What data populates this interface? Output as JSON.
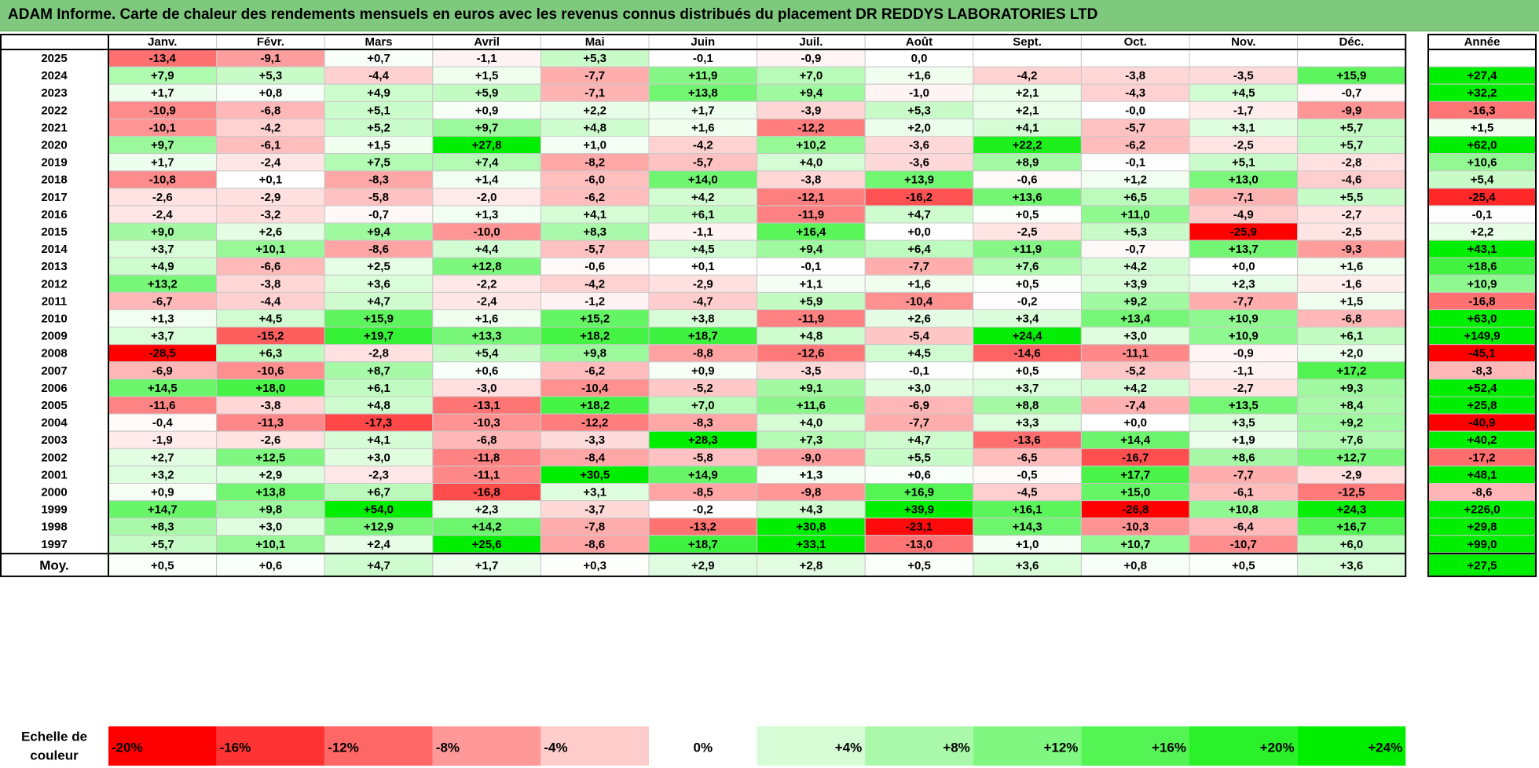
{
  "title": "ADAM Informe. Carte de chaleur des rendements mensuels en euros avec les revenus connus distribués du placement DR REDDYS LABORATORIES LTD",
  "chart_data": {
    "type": "heatmap",
    "months": [
      "Janv.",
      "Févr.",
      "Mars",
      "Avril",
      "Mai",
      "Juin",
      "Juil.",
      "Août",
      "Sept.",
      "Oct.",
      "Nov.",
      "Déc."
    ],
    "year_column_label": "Année",
    "average_row_label": "Moy.",
    "rows": [
      {
        "year": "2025",
        "values": [
          "-13,4",
          "-9,1",
          "+0,7",
          "-1,1",
          "+5,3",
          "-0,1",
          "-0,9",
          "0,0",
          "",
          "",
          "",
          ""
        ],
        "annual": ""
      },
      {
        "year": "2024",
        "values": [
          "+7,9",
          "+5,3",
          "-4,4",
          "+1,5",
          "-7,7",
          "+11,9",
          "+7,0",
          "+1,6",
          "-4,2",
          "-3,8",
          "-3,5",
          "+15,9"
        ],
        "annual": "+27,4"
      },
      {
        "year": "2023",
        "values": [
          "+1,7",
          "+0,8",
          "+4,9",
          "+5,9",
          "-7,1",
          "+13,8",
          "+9,4",
          "-1,0",
          "+2,1",
          "-4,3",
          "+4,5",
          "-0,7"
        ],
        "annual": "+32,2"
      },
      {
        "year": "2022",
        "values": [
          "-10,9",
          "-6,8",
          "+5,1",
          "+0,9",
          "+2,2",
          "+1,7",
          "-3,9",
          "+5,3",
          "+2,1",
          "-0,0",
          "-1,7",
          "-9,9"
        ],
        "annual": "-16,3"
      },
      {
        "year": "2021",
        "values": [
          "-10,1",
          "-4,2",
          "+5,2",
          "+9,7",
          "+4,8",
          "+1,6",
          "-12,2",
          "+2,0",
          "+4,1",
          "-5,7",
          "+3,1",
          "+5,7"
        ],
        "annual": "+1,5"
      },
      {
        "year": "2020",
        "values": [
          "+9,7",
          "-6,1",
          "+1,5",
          "+27,8",
          "+1,0",
          "-4,2",
          "+10,2",
          "-3,6",
          "+22,2",
          "-6,2",
          "-2,5",
          "+5,7"
        ],
        "annual": "+62,0"
      },
      {
        "year": "2019",
        "values": [
          "+1,7",
          "-2,4",
          "+7,5",
          "+7,4",
          "-8,2",
          "-5,7",
          "+4,0",
          "-3,6",
          "+8,9",
          "-0,1",
          "+5,1",
          "-2,8"
        ],
        "annual": "+10,6"
      },
      {
        "year": "2018",
        "values": [
          "-10,8",
          "+0,1",
          "-8,3",
          "+1,4",
          "-6,0",
          "+14,0",
          "-3,8",
          "+13,9",
          "-0,6",
          "+1,2",
          "+13,0",
          "-4,6"
        ],
        "annual": "+5,4"
      },
      {
        "year": "2017",
        "values": [
          "-2,6",
          "-2,9",
          "-5,8",
          "-2,0",
          "-6,2",
          "+4,2",
          "-12,1",
          "-16,2",
          "+13,6",
          "+6,5",
          "-7,1",
          "+5,5"
        ],
        "annual": "-25,4"
      },
      {
        "year": "2016",
        "values": [
          "-2,4",
          "-3,2",
          "-0,7",
          "+1,3",
          "+4,1",
          "+6,1",
          "-11,9",
          "+4,7",
          "+0,5",
          "+11,0",
          "-4,9",
          "-2,7"
        ],
        "annual": "-0,1"
      },
      {
        "year": "2015",
        "values": [
          "+9,0",
          "+2,6",
          "+9,4",
          "-10,0",
          "+8,3",
          "-1,1",
          "+16,4",
          "+0,0",
          "-2,5",
          "+5,3",
          "-25,9",
          "-2,5"
        ],
        "annual": "+2,2"
      },
      {
        "year": "2014",
        "values": [
          "+3,7",
          "+10,1",
          "-8,6",
          "+4,4",
          "-5,7",
          "+4,5",
          "+9,4",
          "+6,4",
          "+11,9",
          "-0,7",
          "+13,7",
          "-9,3"
        ],
        "annual": "+43,1"
      },
      {
        "year": "2013",
        "values": [
          "+4,9",
          "-6,6",
          "+2,5",
          "+12,8",
          "-0,6",
          "+0,1",
          "-0,1",
          "-7,7",
          "+7,6",
          "+4,2",
          "+0,0",
          "+1,6"
        ],
        "annual": "+18,6"
      },
      {
        "year": "2012",
        "values": [
          "+13,2",
          "-3,8",
          "+3,6",
          "-2,2",
          "-4,2",
          "-2,9",
          "+1,1",
          "+1,6",
          "+0,5",
          "+3,9",
          "+2,3",
          "-1,6"
        ],
        "annual": "+10,9"
      },
      {
        "year": "2011",
        "values": [
          "-6,7",
          "-4,4",
          "+4,7",
          "-2,4",
          "-1,2",
          "-4,7",
          "+5,9",
          "-10,4",
          "-0,2",
          "+9,2",
          "-7,7",
          "+1,5"
        ],
        "annual": "-16,8"
      },
      {
        "year": "2010",
        "values": [
          "+1,3",
          "+4,5",
          "+15,9",
          "+1,6",
          "+15,2",
          "+3,8",
          "-11,9",
          "+2,6",
          "+3,4",
          "+13,4",
          "+10,9",
          "-6,8"
        ],
        "annual": "+63,0"
      },
      {
        "year": "2009",
        "values": [
          "+3,7",
          "-15,2",
          "+19,7",
          "+13,3",
          "+18,2",
          "+18,7",
          "+4,8",
          "-5,4",
          "+24,4",
          "+3,0",
          "+10,9",
          "+6,1"
        ],
        "annual": "+149,9"
      },
      {
        "year": "2008",
        "values": [
          "-28,5",
          "+6,3",
          "-2,8",
          "+5,4",
          "+9,8",
          "-8,8",
          "-12,6",
          "+4,5",
          "-14,6",
          "-11,1",
          "-0,9",
          "+2,0"
        ],
        "annual": "-45,1"
      },
      {
        "year": "2007",
        "values": [
          "-6,9",
          "-10,6",
          "+8,7",
          "+0,6",
          "-6,2",
          "+0,9",
          "-3,5",
          "-0,1",
          "+0,5",
          "-5,2",
          "-1,1",
          "+17,2"
        ],
        "annual": "-8,3"
      },
      {
        "year": "2006",
        "values": [
          "+14,5",
          "+18,0",
          "+6,1",
          "-3,0",
          "-10,4",
          "-5,2",
          "+9,1",
          "+3,0",
          "+3,7",
          "+4,2",
          "-2,7",
          "+9,3"
        ],
        "annual": "+52,4"
      },
      {
        "year": "2005",
        "values": [
          "-11,6",
          "-3,8",
          "+4,8",
          "-13,1",
          "+18,2",
          "+7,0",
          "+11,6",
          "-6,9",
          "+8,8",
          "-7,4",
          "+13,5",
          "+8,4"
        ],
        "annual": "+25,8"
      },
      {
        "year": "2004",
        "values": [
          "-0,4",
          "-11,3",
          "-17,3",
          "-10,3",
          "-12,2",
          "-8,3",
          "+4,0",
          "-7,7",
          "+3,3",
          "+0,0",
          "+3,5",
          "+9,2"
        ],
        "annual": "-40,9"
      },
      {
        "year": "2003",
        "values": [
          "-1,9",
          "-2,6",
          "+4,1",
          "-6,8",
          "-3,3",
          "+28,3",
          "+7,3",
          "+4,7",
          "-13,6",
          "+14,4",
          "+1,9",
          "+7,6"
        ],
        "annual": "+40,2"
      },
      {
        "year": "2002",
        "values": [
          "+2,7",
          "+12,5",
          "+3,0",
          "-11,8",
          "-8,4",
          "-5,8",
          "-9,0",
          "+5,5",
          "-6,5",
          "-16,7",
          "+8,6",
          "+12,7"
        ],
        "annual": "-17,2"
      },
      {
        "year": "2001",
        "values": [
          "+3,2",
          "+2,9",
          "-2,3",
          "-11,1",
          "+30,5",
          "+14,9",
          "+1,3",
          "+0,6",
          "-0,5",
          "+17,7",
          "-7,7",
          "-2,9"
        ],
        "annual": "+48,1"
      },
      {
        "year": "2000",
        "values": [
          "+0,9",
          "+13,8",
          "+6,7",
          "-16,8",
          "+3,1",
          "-8,5",
          "-9,8",
          "+16,9",
          "-4,5",
          "+15,0",
          "-6,1",
          "-12,5"
        ],
        "annual": "-8,6"
      },
      {
        "year": "1999",
        "values": [
          "+14,7",
          "+9,8",
          "+54,0",
          "+2,3",
          "-3,7",
          "-0,2",
          "+4,3",
          "+39,9",
          "+16,1",
          "-26,8",
          "+10,8",
          "+24,3"
        ],
        "annual": "+226,0"
      },
      {
        "year": "1998",
        "values": [
          "+8,3",
          "+3,0",
          "+12,9",
          "+14,2",
          "-7,8",
          "-13,2",
          "+30,8",
          "-23,1",
          "+14,3",
          "-10,3",
          "-6,4",
          "+16,7"
        ],
        "annual": "+29,8"
      },
      {
        "year": "1997",
        "values": [
          "+5,7",
          "+10,1",
          "+2,4",
          "+25,6",
          "-8,6",
          "+18,7",
          "+33,1",
          "-13,0",
          "+1,0",
          "+10,7",
          "-10,7",
          "+6,0"
        ],
        "annual": "+99,0"
      }
    ],
    "average": {
      "values": [
        "+0,5",
        "+0,6",
        "+4,7",
        "+1,7",
        "+0,3",
        "+2,9",
        "+2,8",
        "+0,5",
        "+3,6",
        "+0,8",
        "+0,5",
        "+3,6"
      ],
      "annual": "+27,5"
    },
    "color_scale": {
      "label": "Echelle de couleur",
      "stops": [
        "-20%",
        "-16%",
        "-12%",
        "-8%",
        "-4%",
        "0%",
        "+4%",
        "+8%",
        "+12%",
        "+16%",
        "+20%",
        "+24%"
      ]
    }
  },
  "colors": {
    "title_bar": "#7ec97e",
    "negative_max": "#ff0000",
    "positive_max": "#00ee00",
    "neutral": "#ffffff",
    "grid": "#c8c8c8",
    "frame": "#000000"
  }
}
